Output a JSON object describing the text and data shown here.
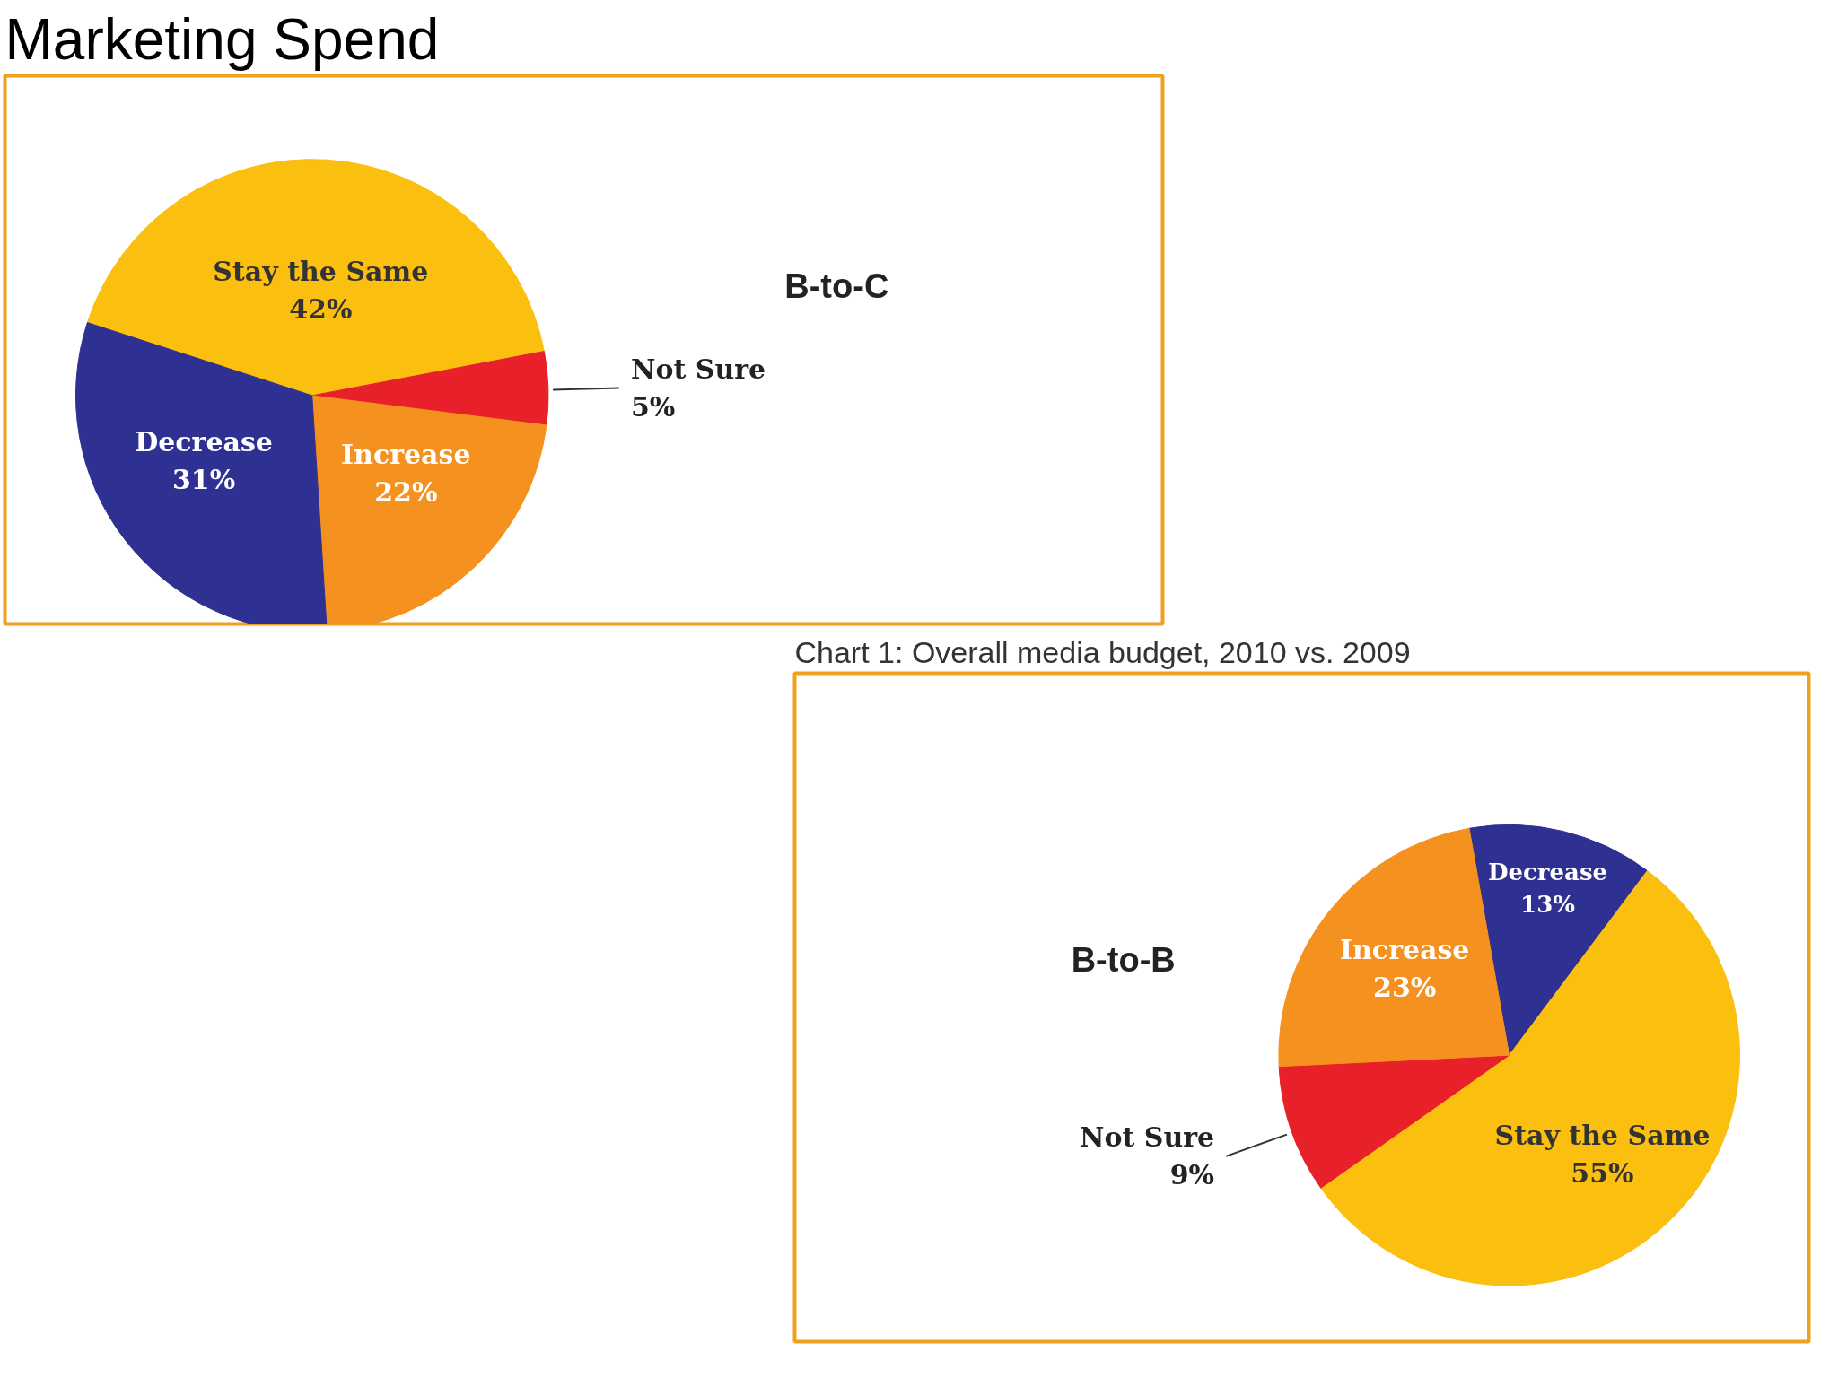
{
  "chart_data": [
    {
      "type": "pie",
      "title": "Marketing Spend",
      "subtitle": "B-to-C",
      "categories": [
        "Stay the Same",
        "Not Sure",
        "Increase",
        "Decrease"
      ],
      "values": [
        42,
        5,
        22,
        31
      ],
      "value_labels": [
        "42%",
        "5%",
        "22%",
        "31%"
      ],
      "colors": [
        "#fbbf10",
        "#e8202a",
        "#f5911f",
        "#2e3192"
      ],
      "legend": false
    },
    {
      "type": "pie",
      "title": "Chart 1: Overall media budget, 2010 vs. 2009",
      "subtitle": "B-to-B",
      "categories": [
        "Decrease",
        "Stay the Same",
        "Not Sure",
        "Increase"
      ],
      "values": [
        13,
        55,
        9,
        23
      ],
      "value_labels": [
        "13%",
        "55%",
        "9%",
        "23%"
      ],
      "colors": [
        "#2e3192",
        "#fbbf10",
        "#e8202a",
        "#f5911f"
      ],
      "legend": false
    }
  ]
}
